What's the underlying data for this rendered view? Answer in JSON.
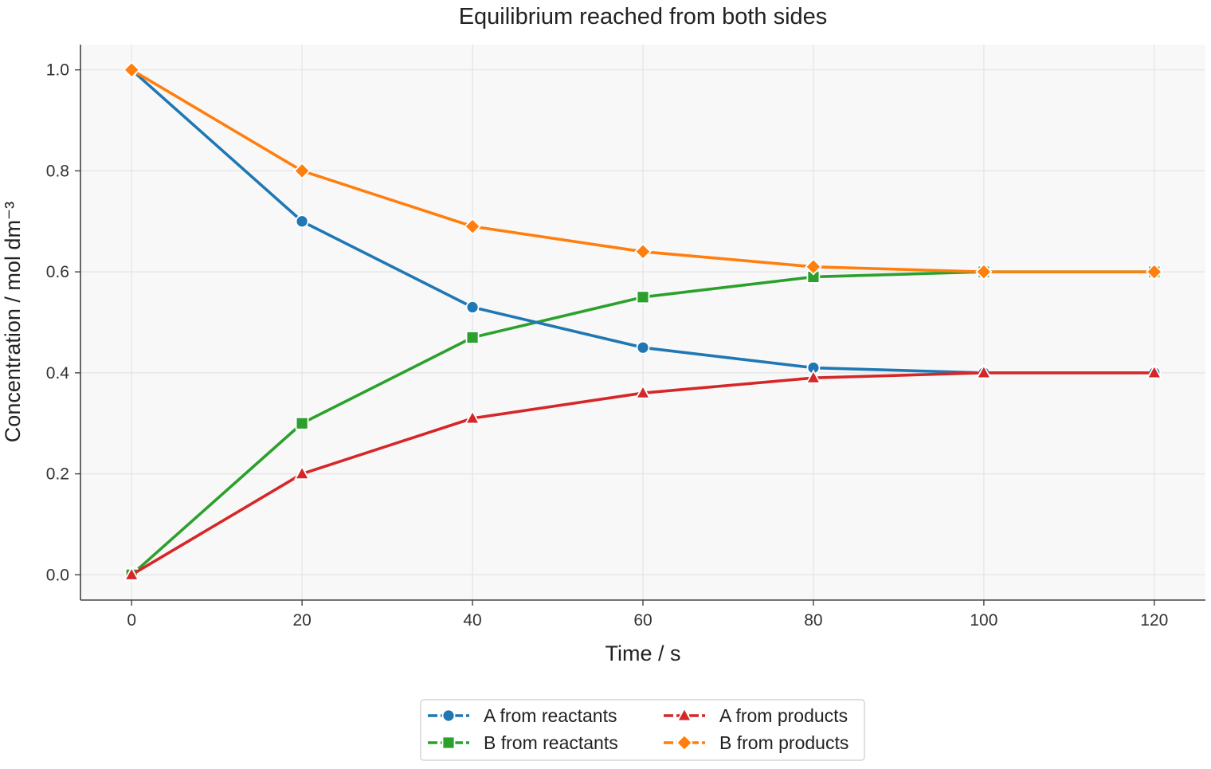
{
  "chart_data": {
    "type": "line",
    "title": "Equilibrium reached from both sides",
    "xlabel": "Time / s",
    "ylabel": "Concentration / mol dm⁻³",
    "x": [
      0,
      20,
      40,
      60,
      80,
      100,
      120
    ],
    "xlim": [
      -6,
      126
    ],
    "ylim": [
      -0.05,
      1.05
    ],
    "xticks": [
      0,
      20,
      40,
      60,
      80,
      100,
      120
    ],
    "yticks": [
      0.0,
      0.2,
      0.4,
      0.6,
      0.8,
      1.0
    ],
    "ytick_labels": [
      "0.0",
      "0.2",
      "0.4",
      "0.6",
      "0.8",
      "1.0"
    ],
    "grid": true,
    "legend_position": "bottom-center",
    "series": [
      {
        "name": "A from reactants",
        "color": "#1f77b4",
        "marker": "circle",
        "values": [
          1.0,
          0.7,
          0.53,
          0.45,
          0.41,
          0.4,
          0.4
        ]
      },
      {
        "name": "B from reactants",
        "color": "#2ca02c",
        "marker": "square",
        "values": [
          0.0,
          0.3,
          0.47,
          0.55,
          0.59,
          0.6,
          0.6
        ]
      },
      {
        "name": "A from products",
        "color": "#d62728",
        "marker": "triangle",
        "values": [
          0.0,
          0.2,
          0.31,
          0.36,
          0.39,
          0.4,
          0.4
        ]
      },
      {
        "name": "B from products",
        "color": "#ff7f0e",
        "marker": "diamond",
        "values": [
          1.0,
          0.8,
          0.69,
          0.64,
          0.61,
          0.6,
          0.6
        ]
      }
    ],
    "draw_order": [
      1,
      0,
      2,
      3
    ]
  }
}
